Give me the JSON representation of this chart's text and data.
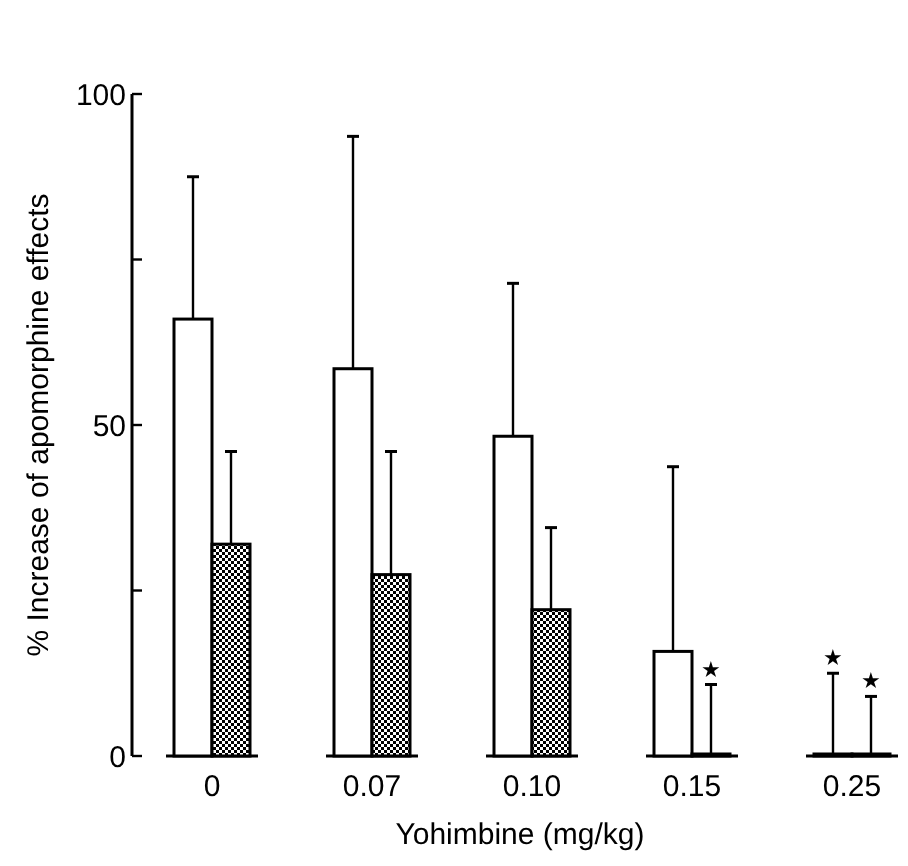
{
  "chart_data": {
    "type": "bar",
    "xlabel": "Yohimbine (mg/kg)",
    "ylabel": "% Increase of apomorphine effects",
    "categories": [
      "0",
      "0.07",
      "0.10",
      "0.15",
      "0.25"
    ],
    "series": [
      {
        "color": "#ffffff",
        "values": [
          66,
          58.5,
          48.3,
          15.8,
          0
        ],
        "errors": [
          [
            66,
            87.5
          ],
          [
            58.5,
            93.6
          ],
          [
            48.3,
            71.4
          ],
          [
            15.8,
            43.7
          ],
          [
            0,
            12.5
          ]
        ]
      },
      {
        "color": "#000000",
        "values": [
          32,
          27.4,
          22.1,
          0,
          0
        ],
        "errors": [
          [
            32,
            46
          ],
          [
            27.4,
            46
          ],
          [
            22.1,
            34.5
          ],
          [
            0,
            10.8
          ],
          [
            0,
            9
          ]
        ]
      }
    ],
    "ylim": [
      0,
      100
    ],
    "yticks": [
      0,
      {
        "value": 25,
        "label": null
      },
      50,
      {
        "value": 75,
        "label": null
      },
      100
    ],
    "grid": false,
    "annotations": [
      {
        "text": "★",
        "x": "0.15",
        "y": 10.8
      },
      "★",
      "★"
    ]
  }
}
